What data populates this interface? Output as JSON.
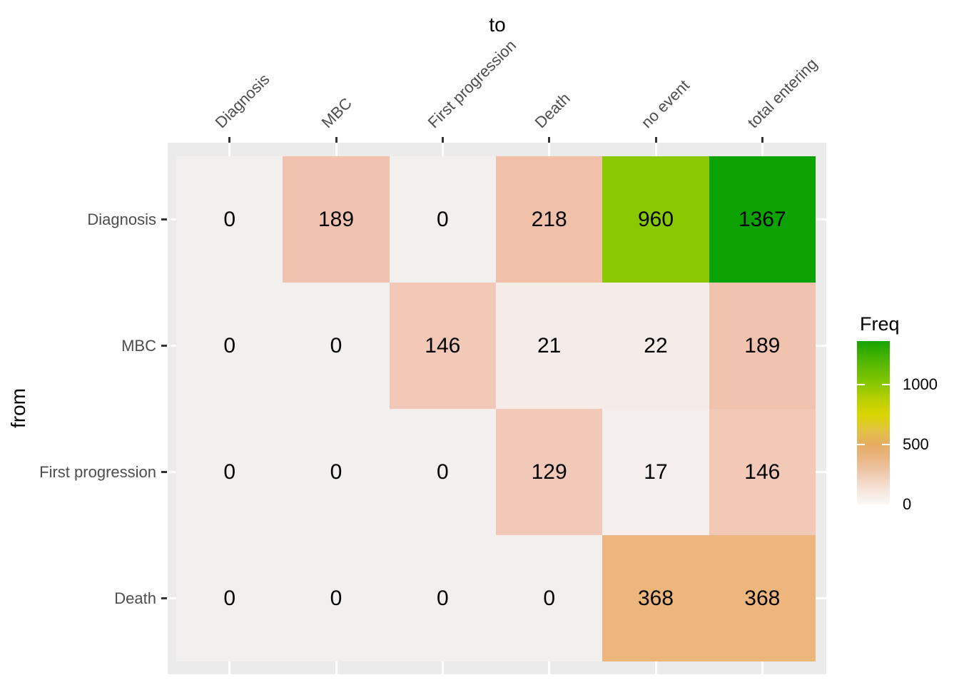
{
  "chart_data": {
    "type": "heatmap",
    "xlabel": "to",
    "ylabel": "from",
    "columns": [
      "Diagnosis",
      "MBC",
      "First progression",
      "Death",
      "no event",
      "total entering"
    ],
    "rows": [
      "Diagnosis",
      "MBC",
      "First progression",
      "Death"
    ],
    "values": [
      [
        0,
        189,
        0,
        218,
        960,
        1367
      ],
      [
        0,
        0,
        146,
        21,
        22,
        189
      ],
      [
        0,
        0,
        0,
        129,
        17,
        146
      ],
      [
        0,
        0,
        0,
        0,
        368,
        368
      ]
    ],
    "cell_colors": [
      [
        "#F1F0EF",
        "#F1C3AF",
        "#F1F0EF",
        "#F0C0A9",
        "#8AC800",
        "#0CA201"
      ],
      [
        "#F1F0EF",
        "#F1F0EF",
        "#F2C8B7",
        "#F5ECE7",
        "#F5ECE7",
        "#F1C3AF"
      ],
      [
        "#F1F0EF",
        "#F1F0EF",
        "#F1F0EF",
        "#F2C9B9",
        "#F6EEEA",
        "#F2C8B7"
      ],
      [
        "#F1F0EF",
        "#F1F0EF",
        "#F1F0EF",
        "#F1F0EF",
        "#EDB67C",
        "#EDB67C"
      ]
    ],
    "legend": {
      "title": "Freq",
      "position": "right",
      "min": 0,
      "max": 1367,
      "ticks": [
        1000,
        500,
        0
      ],
      "gradient_stops": [
        {
          "pos": 0,
          "color": "#17A400"
        },
        {
          "pos": 0.12,
          "color": "#4FB600"
        },
        {
          "pos": 0.268,
          "color": "#8AC800"
        },
        {
          "pos": 0.36,
          "color": "#BCCF00"
        },
        {
          "pos": 0.45,
          "color": "#D9D500"
        },
        {
          "pos": 0.55,
          "color": "#E2C145"
        },
        {
          "pos": 0.634,
          "color": "#E6AC64"
        },
        {
          "pos": 0.73,
          "color": "#EAB989"
        },
        {
          "pos": 0.817,
          "color": "#F0CBB2"
        },
        {
          "pos": 0.91,
          "color": "#F6E5DA"
        },
        {
          "pos": 1,
          "color": "#FBF8F6"
        }
      ]
    },
    "style": {
      "panel_bg": "#EBEBEB",
      "gridline": "#FFFFFF",
      "axis_text_color": "#4D4D4D",
      "axis_title_color": "#000000",
      "cell_text_color": "#000000",
      "tick_color": "#333333",
      "background": "#FFFFFF"
    },
    "grid": true
  }
}
